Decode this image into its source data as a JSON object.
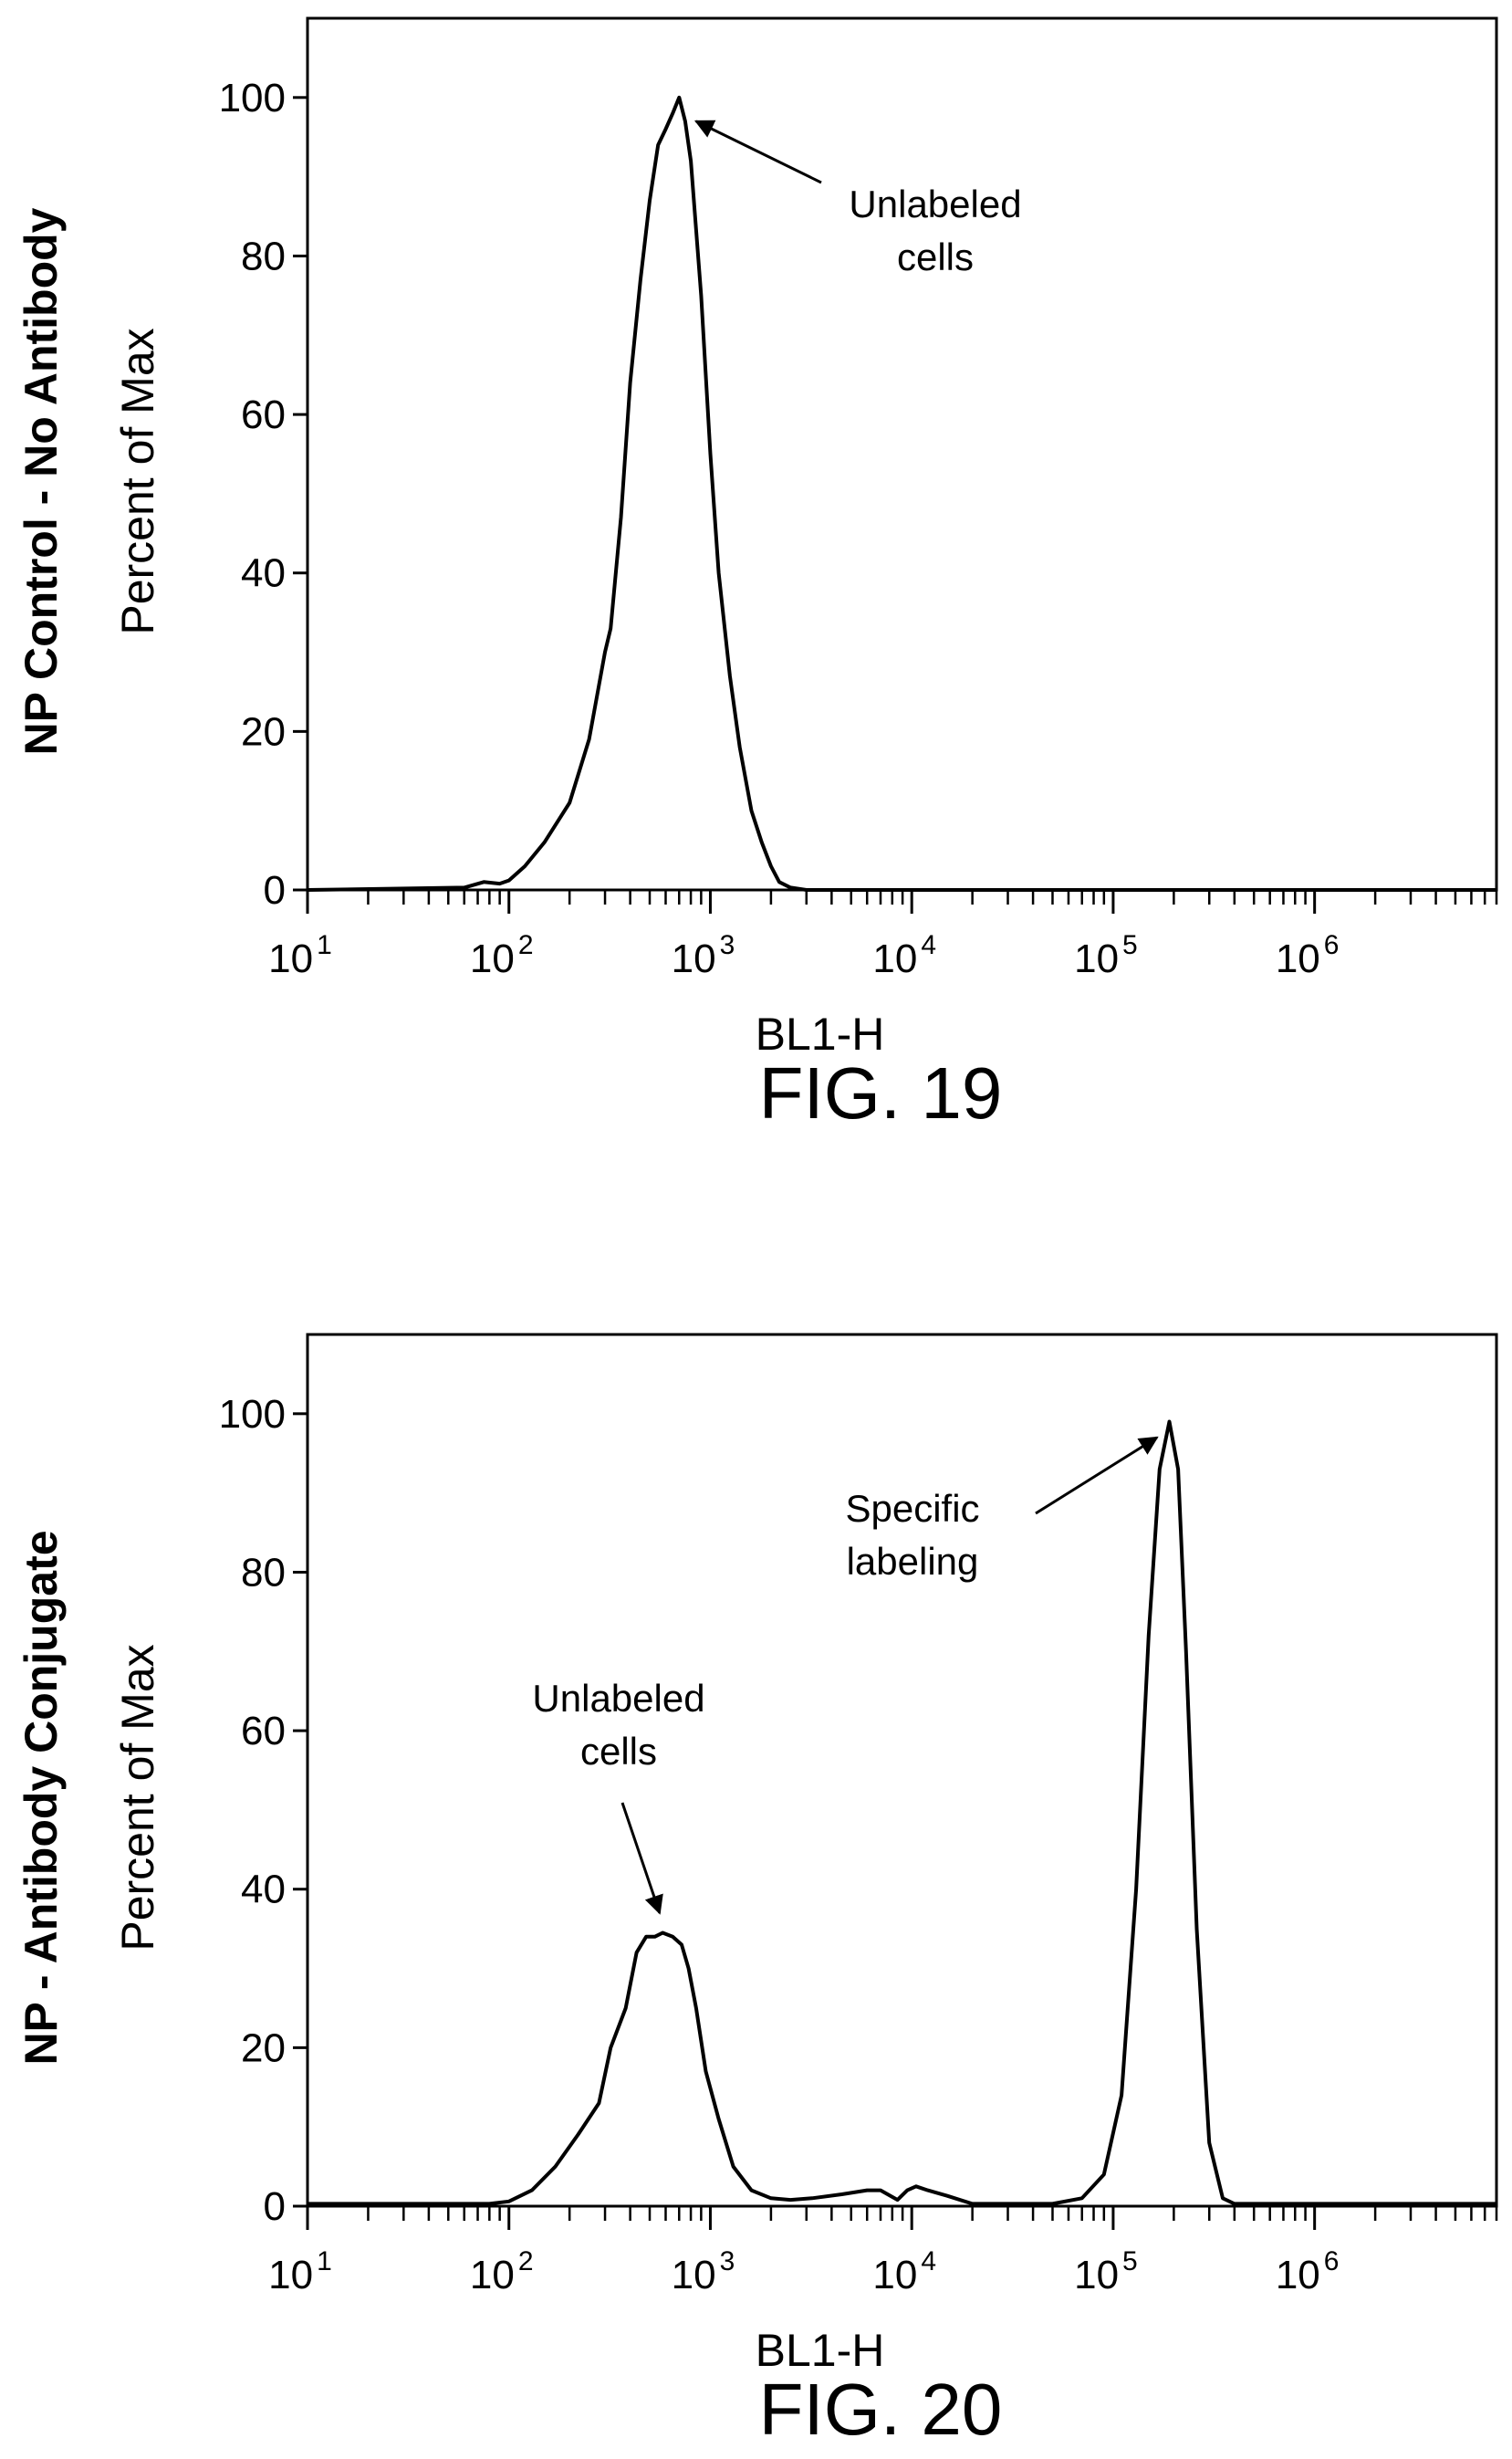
{
  "chart_data": [
    {
      "type": "line",
      "caption": "FIG. 19",
      "side_label": "NP Control - No Antibody",
      "ylabel": "Percent of Max",
      "xlabel": "BL1-H",
      "x_scale": "log",
      "xlim": [
        10,
        8000000
      ],
      "ylim": [
        0,
        110
      ],
      "y_ticks": [
        0,
        20,
        40,
        60,
        80,
        100
      ],
      "x_ticks": [
        {
          "base": "10",
          "exp": "1",
          "value": 10
        },
        {
          "base": "10",
          "exp": "2",
          "value": 100
        },
        {
          "base": "10",
          "exp": "3",
          "value": 1000
        },
        {
          "base": "10",
          "exp": "4",
          "value": 10000
        },
        {
          "base": "10",
          "exp": "5",
          "value": 100000
        },
        {
          "base": "10",
          "exp": "6",
          "value": 1000000
        }
      ],
      "grid": false,
      "series": [
        {
          "x": [
            10,
            60,
            75,
            90,
            100,
            120,
            150,
            200,
            250,
            300,
            320,
            360,
            400,
            450,
            500,
            550,
            600,
            650,
            700,
            750,
            800,
            900,
            1000,
            1100,
            1250,
            1400,
            1600,
            1800,
            2000,
            2200,
            2500,
            3000,
            10000,
            100000,
            1000000,
            8000000
          ],
          "y": [
            0,
            0.3,
            1,
            0.8,
            1.2,
            3,
            6,
            11,
            19,
            30,
            33,
            47,
            64,
            77,
            87,
            94,
            96,
            98,
            100,
            97,
            92,
            75,
            55,
            40,
            27,
            18,
            10,
            6,
            3,
            1,
            0.3,
            0,
            0,
            0,
            0,
            0
          ]
        }
      ],
      "annotations": [
        {
          "text": [
            "Unlabeled",
            "cells"
          ],
          "target_x": 850,
          "target_y": 97
        }
      ]
    },
    {
      "type": "line",
      "caption": "FIG. 20",
      "side_label": "NP - Antibody Conjugate",
      "ylabel": "Percent of Max",
      "xlabel": "BL1-H",
      "x_scale": "log",
      "xlim": [
        10,
        8000000
      ],
      "ylim": [
        0,
        110
      ],
      "y_ticks": [
        0,
        20,
        40,
        60,
        80,
        100
      ],
      "x_ticks": [
        {
          "base": "10",
          "exp": "1",
          "value": 10
        },
        {
          "base": "10",
          "exp": "2",
          "value": 100
        },
        {
          "base": "10",
          "exp": "3",
          "value": 1000
        },
        {
          "base": "10",
          "exp": "4",
          "value": 10000
        },
        {
          "base": "10",
          "exp": "5",
          "value": 100000
        },
        {
          "base": "10",
          "exp": "6",
          "value": 1000000
        }
      ],
      "grid": false,
      "series": [
        {
          "x": [
            10,
            80,
            100,
            130,
            170,
            220,
            280,
            320,
            380,
            430,
            480,
            530,
            580,
            650,
            720,
            780,
            850,
            950,
            1100,
            1300,
            1600,
            2000,
            2500,
            3200,
            4500,
            6000,
            7000,
            8500,
            9500,
            10500,
            12000,
            15000,
            20000,
            30000,
            50000,
            70000,
            90000,
            110000,
            130000,
            150000,
            170000,
            190000,
            210000,
            230000,
            260000,
            300000,
            350000,
            400000,
            1000000,
            8000000
          ],
          "y": [
            0.3,
            0.3,
            0.6,
            2,
            5,
            9,
            13,
            20,
            25,
            32,
            34,
            34,
            34.5,
            34,
            33,
            30,
            25,
            17,
            11,
            5,
            2,
            1,
            0.8,
            1,
            1.5,
            2,
            2,
            0.8,
            2,
            2.5,
            2,
            1.3,
            0.3,
            0.3,
            0.3,
            1,
            4,
            14,
            40,
            72,
            93,
            99,
            93,
            70,
            35,
            8,
            1,
            0.3,
            0.3,
            0.3
          ]
        }
      ],
      "annotations": [
        {
          "text": [
            "Specific",
            "labeling"
          ],
          "target_x": 165000,
          "target_y": 97
        },
        {
          "text": [
            "Unlabeled",
            "cells"
          ],
          "target_x": 560,
          "target_y": 37
        }
      ]
    }
  ]
}
